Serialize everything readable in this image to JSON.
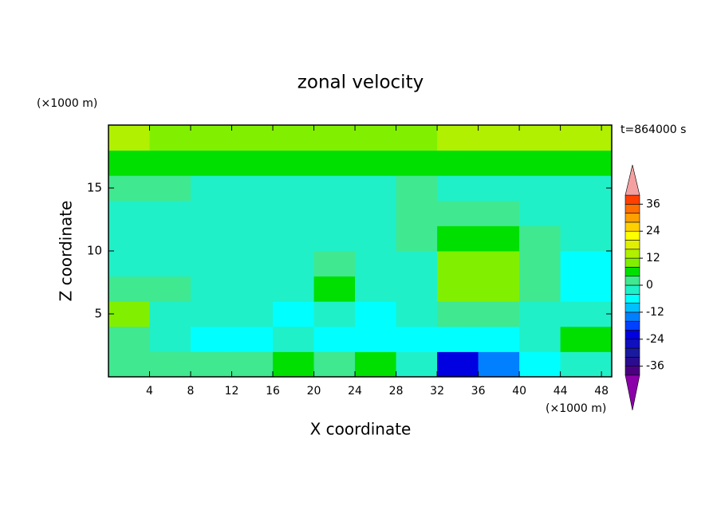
{
  "chart_data": {
    "type": "contour",
    "title": "zonal velocity",
    "xlabel": "X coordinate",
    "ylabel": "Z coordinate",
    "xunit": "(×1000 m)",
    "yunit": "(×1000 m)",
    "time_label": "t=864000 s",
    "xlim": [
      0,
      49
    ],
    "ylim": [
      0,
      20
    ],
    "xticks": [
      4,
      8,
      12,
      16,
      20,
      24,
      28,
      32,
      36,
      40,
      44,
      48
    ],
    "yticks": [
      5,
      10,
      15
    ],
    "x": [
      2,
      6,
      10,
      14,
      18,
      22,
      26,
      30,
      34,
      38,
      42,
      46
    ],
    "y": [
      1,
      3,
      5,
      7,
      9,
      11,
      13,
      15,
      17,
      19
    ],
    "z": [
      [
        2,
        2,
        3,
        3,
        5,
        2,
        4,
        -4,
        -22,
        -16,
        -8,
        -4
      ],
      [
        2,
        -2,
        -6,
        -6,
        -2,
        -6,
        -6,
        -6,
        -8,
        -6,
        -3,
        6
      ],
      [
        8,
        -1,
        -4,
        -2,
        -6,
        -2,
        -6,
        -4,
        2,
        2,
        -2,
        -4
      ],
      [
        2,
        1,
        -1,
        -1,
        -2,
        6,
        -1,
        -2,
        8,
        8,
        2,
        -6
      ],
      [
        -4,
        -2,
        -2,
        -3,
        -2,
        3,
        -3,
        -3,
        8,
        8,
        2,
        -6
      ],
      [
        -2,
        -3,
        -2,
        -3,
        -3,
        -2,
        -3,
        1,
        4,
        4,
        1,
        -2
      ],
      [
        -2,
        -2,
        -3,
        -3,
        -3,
        -3,
        -3,
        1,
        1,
        1,
        -1,
        -2
      ],
      [
        1,
        0,
        -1,
        -2,
        -2,
        -2,
        -1,
        1,
        -2,
        -3,
        -3,
        -2
      ],
      [
        6,
        5,
        5,
        5,
        5,
        5,
        6,
        6,
        6,
        6,
        5,
        6
      ],
      [
        14,
        9,
        8,
        8,
        9,
        8,
        8,
        10,
        14,
        14,
        14,
        14
      ]
    ],
    "levels": [
      -40,
      -36,
      -32,
      -28,
      -24,
      -20,
      -16,
      -12,
      -8,
      -4,
      0,
      4,
      8,
      12,
      16,
      20,
      24,
      28,
      32,
      36,
      40
    ],
    "colors": [
      "#4b0082",
      "#2a0d8f",
      "#1a1aa0",
      "#1010c0",
      "#0000e0",
      "#0040ff",
      "#0080ff",
      "#00c0ff",
      "#00ffff",
      "#20f0c8",
      "#40e890",
      "#00e000",
      "#80f000",
      "#b0f000",
      "#e0f000",
      "#ffff00",
      "#ffd000",
      "#ffa000",
      "#ff7000",
      "#ff4000"
    ],
    "over_color": "#f4a0a0",
    "under_color": "#8b00a8",
    "cbar_ticks": [
      -36,
      -24,
      -12,
      0,
      12,
      24,
      36
    ]
  }
}
